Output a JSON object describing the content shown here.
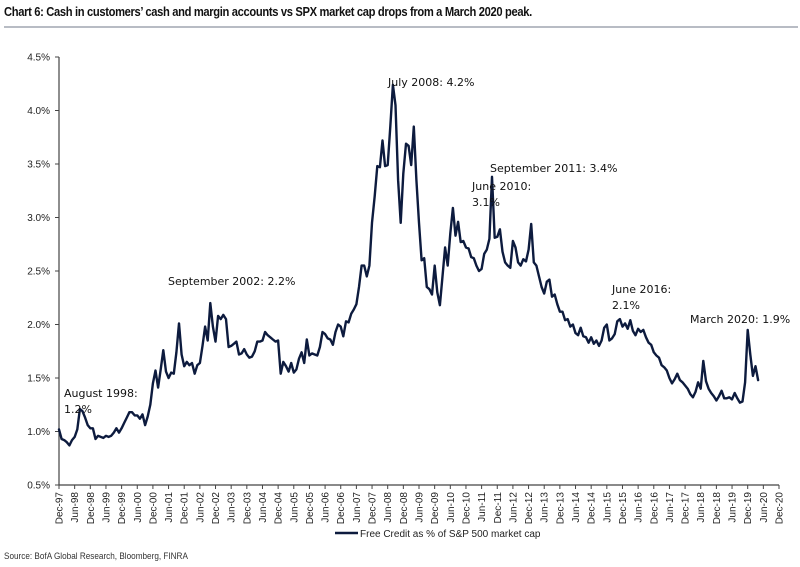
{
  "title": "Chart 6: Cash in customers’ cash and margin accounts vs SPX market cap drops from a March 2020 peak.",
  "source": "Source: BofA Global Research, Bloomberg, FINRA",
  "chart_data": {
    "type": "line",
    "title": "Chart 6: Cash in customers’ cash and margin accounts vs SPX market cap drops from a March 2020 peak.",
    "xlabel": "",
    "ylabel": "",
    "ylim": [
      0.5,
      4.5
    ],
    "yticks": [
      "0.5%",
      "1.0%",
      "1.5%",
      "2.0%",
      "2.5%",
      "3.0%",
      "3.5%",
      "4.0%",
      "4.5%"
    ],
    "ytick_values": [
      0.5,
      1.0,
      1.5,
      2.0,
      2.5,
      3.0,
      3.5,
      4.0,
      4.5
    ],
    "xticks": [
      "Dec-97",
      "Jun-98",
      "Dec-98",
      "Jun-99",
      "Dec-99",
      "Jun-00",
      "Dec-00",
      "Jun-01",
      "Dec-01",
      "Jun-02",
      "Dec-02",
      "Jun-03",
      "Dec-03",
      "Jun-04",
      "Dec-04",
      "Jun-05",
      "Dec-05",
      "Jun-06",
      "Dec-06",
      "Jun-07",
      "Dec-07",
      "Jun-08",
      "Dec-08",
      "Jun-09",
      "Dec-09",
      "Jun-10",
      "Dec-10",
      "Jun-11",
      "Dec-11",
      "Jun-12",
      "Dec-12",
      "Jun-13",
      "Dec-13",
      "Jun-14",
      "Dec-14",
      "Jun-15",
      "Dec-15",
      "Jun-16",
      "Dec-16",
      "Jun-17",
      "Dec-17",
      "Jun-18",
      "Dec-18",
      "Jun-19",
      "Dec-19",
      "Jun-20",
      "Dec-20"
    ],
    "x_unit": "months since Dec-97",
    "grid": false,
    "legend_position": "bottom-center",
    "series": [
      {
        "name": "Free Credit as % of S&P 500 market cap",
        "color": "#0d1b3e",
        "points": [
          [
            0,
            1.02
          ],
          [
            1,
            0.93
          ],
          [
            2,
            0.92
          ],
          [
            3,
            0.9
          ],
          [
            4,
            0.87
          ],
          [
            5,
            0.92
          ],
          [
            6,
            0.95
          ],
          [
            7,
            1.02
          ],
          [
            8,
            1.21
          ],
          [
            9,
            1.19
          ],
          [
            10,
            1.13
          ],
          [
            11,
            1.06
          ],
          [
            12,
            1.03
          ],
          [
            13,
            1.03
          ],
          [
            14,
            0.93
          ],
          [
            15,
            0.96
          ],
          [
            16,
            0.95
          ],
          [
            17,
            0.94
          ],
          [
            18,
            0.96
          ],
          [
            19,
            0.95
          ],
          [
            20,
            0.96
          ],
          [
            21,
            0.99
          ],
          [
            22,
            1.03
          ],
          [
            23,
            0.99
          ],
          [
            24,
            1.03
          ],
          [
            25,
            1.08
          ],
          [
            26,
            1.13
          ],
          [
            27,
            1.18
          ],
          [
            28,
            1.18
          ],
          [
            29,
            1.15
          ],
          [
            30,
            1.15
          ],
          [
            31,
            1.12
          ],
          [
            32,
            1.16
          ],
          [
            33,
            1.06
          ],
          [
            34,
            1.14
          ],
          [
            35,
            1.25
          ],
          [
            36,
            1.45
          ],
          [
            37,
            1.57
          ],
          [
            38,
            1.41
          ],
          [
            39,
            1.58
          ],
          [
            40,
            1.76
          ],
          [
            41,
            1.56
          ],
          [
            42,
            1.5
          ],
          [
            43,
            1.55
          ],
          [
            44,
            1.54
          ],
          [
            45,
            1.74
          ],
          [
            46,
            2.01
          ],
          [
            47,
            1.72
          ],
          [
            48,
            1.61
          ],
          [
            49,
            1.65
          ],
          [
            50,
            1.62
          ],
          [
            51,
            1.64
          ],
          [
            52,
            1.54
          ],
          [
            53,
            1.62
          ],
          [
            54,
            1.64
          ],
          [
            55,
            1.8
          ],
          [
            56,
            1.98
          ],
          [
            57,
            1.85
          ],
          [
            58,
            2.2
          ],
          [
            59,
            1.98
          ],
          [
            60,
            1.84
          ],
          [
            61,
            2.08
          ],
          [
            62,
            2.05
          ],
          [
            63,
            2.09
          ],
          [
            64,
            2.05
          ],
          [
            65,
            1.79
          ],
          [
            66,
            1.8
          ],
          [
            67,
            1.82
          ],
          [
            68,
            1.84
          ],
          [
            69,
            1.72
          ],
          [
            70,
            1.73
          ],
          [
            71,
            1.77
          ],
          [
            72,
            1.72
          ],
          [
            73,
            1.69
          ],
          [
            74,
            1.7
          ],
          [
            75,
            1.75
          ],
          [
            76,
            1.84
          ],
          [
            77,
            1.84
          ],
          [
            78,
            1.85
          ],
          [
            79,
            1.93
          ],
          [
            80,
            1.9
          ],
          [
            81,
            1.88
          ],
          [
            82,
            1.86
          ],
          [
            83,
            1.84
          ],
          [
            84,
            1.85
          ],
          [
            85,
            1.54
          ],
          [
            86,
            1.65
          ],
          [
            87,
            1.61
          ],
          [
            88,
            1.56
          ],
          [
            89,
            1.64
          ],
          [
            90,
            1.55
          ],
          [
            91,
            1.58
          ],
          [
            92,
            1.68
          ],
          [
            93,
            1.74
          ],
          [
            94,
            1.64
          ],
          [
            95,
            1.86
          ],
          [
            96,
            1.71
          ],
          [
            97,
            1.73
          ],
          [
            98,
            1.72
          ],
          [
            99,
            1.71
          ],
          [
            100,
            1.79
          ],
          [
            101,
            1.93
          ],
          [
            102,
            1.91
          ],
          [
            103,
            1.87
          ],
          [
            104,
            1.86
          ],
          [
            105,
            1.81
          ],
          [
            106,
            1.93
          ],
          [
            107,
            2.0
          ],
          [
            108,
            1.98
          ],
          [
            109,
            1.89
          ],
          [
            110,
            2.03
          ],
          [
            111,
            2.02
          ],
          [
            112,
            2.1
          ],
          [
            113,
            2.14
          ],
          [
            114,
            2.19
          ],
          [
            115,
            2.35
          ],
          [
            116,
            2.55
          ],
          [
            117,
            2.55
          ],
          [
            118,
            2.45
          ],
          [
            119,
            2.55
          ],
          [
            120,
            2.95
          ],
          [
            121,
            3.2
          ],
          [
            122,
            3.48
          ],
          [
            123,
            3.47
          ],
          [
            124,
            3.72
          ],
          [
            125,
            3.48
          ],
          [
            126,
            3.49
          ],
          [
            127,
            3.85
          ],
          [
            128,
            4.24
          ],
          [
            129,
            4.05
          ],
          [
            130,
            3.35
          ],
          [
            131,
            2.95
          ],
          [
            132,
            3.41
          ],
          [
            133,
            3.69
          ],
          [
            134,
            3.67
          ],
          [
            135,
            3.49
          ],
          [
            136,
            3.85
          ],
          [
            137,
            3.35
          ],
          [
            138,
            2.95
          ],
          [
            139,
            2.6
          ],
          [
            140,
            2.62
          ],
          [
            141,
            2.35
          ],
          [
            142,
            2.33
          ],
          [
            143,
            2.28
          ],
          [
            144,
            2.55
          ],
          [
            145,
            2.3
          ],
          [
            146,
            2.18
          ],
          [
            147,
            2.45
          ],
          [
            148,
            2.72
          ],
          [
            149,
            2.55
          ],
          [
            150,
            2.85
          ],
          [
            151,
            3.09
          ],
          [
            152,
            2.83
          ],
          [
            153,
            2.96
          ],
          [
            154,
            2.77
          ],
          [
            155,
            2.78
          ],
          [
            156,
            2.72
          ],
          [
            157,
            2.71
          ],
          [
            158,
            2.63
          ],
          [
            159,
            2.62
          ],
          [
            160,
            2.55
          ],
          [
            161,
            2.5
          ],
          [
            162,
            2.52
          ],
          [
            163,
            2.66
          ],
          [
            164,
            2.7
          ],
          [
            165,
            2.8
          ],
          [
            166,
            3.38
          ],
          [
            167,
            2.81
          ],
          [
            168,
            2.82
          ],
          [
            169,
            2.89
          ],
          [
            170,
            2.68
          ],
          [
            171,
            2.58
          ],
          [
            172,
            2.55
          ],
          [
            173,
            2.53
          ],
          [
            174,
            2.78
          ],
          [
            175,
            2.72
          ],
          [
            176,
            2.58
          ],
          [
            177,
            2.55
          ],
          [
            178,
            2.61
          ],
          [
            179,
            2.59
          ],
          [
            180,
            2.7
          ],
          [
            181,
            2.94
          ],
          [
            182,
            2.58
          ],
          [
            183,
            2.55
          ],
          [
            184,
            2.45
          ],
          [
            185,
            2.35
          ],
          [
            186,
            2.29
          ],
          [
            187,
            2.4
          ],
          [
            188,
            2.42
          ],
          [
            189,
            2.26
          ],
          [
            190,
            2.28
          ],
          [
            191,
            2.19
          ],
          [
            192,
            2.12
          ],
          [
            193,
            2.12
          ],
          [
            194,
            2.04
          ],
          [
            195,
            2.05
          ],
          [
            196,
            1.98
          ],
          [
            197,
            2.0
          ],
          [
            198,
            1.92
          ],
          [
            199,
            1.9
          ],
          [
            200,
            1.97
          ],
          [
            201,
            1.89
          ],
          [
            202,
            1.88
          ],
          [
            203,
            1.83
          ],
          [
            204,
            1.88
          ],
          [
            205,
            1.82
          ],
          [
            206,
            1.85
          ],
          [
            207,
            1.8
          ],
          [
            208,
            1.85
          ],
          [
            209,
            1.97
          ],
          [
            210,
            2.0
          ],
          [
            211,
            1.85
          ],
          [
            212,
            1.87
          ],
          [
            213,
            1.91
          ],
          [
            214,
            2.03
          ],
          [
            215,
            2.05
          ],
          [
            216,
            1.98
          ],
          [
            217,
            2.01
          ],
          [
            218,
            1.96
          ],
          [
            219,
            2.04
          ],
          [
            220,
            1.94
          ],
          [
            221,
            1.9
          ],
          [
            222,
            1.96
          ],
          [
            223,
            1.93
          ],
          [
            224,
            1.95
          ],
          [
            225,
            1.88
          ],
          [
            226,
            1.83
          ],
          [
            227,
            1.81
          ],
          [
            228,
            1.74
          ],
          [
            229,
            1.71
          ],
          [
            230,
            1.69
          ],
          [
            231,
            1.62
          ],
          [
            232,
            1.6
          ],
          [
            233,
            1.57
          ],
          [
            234,
            1.5
          ],
          [
            235,
            1.45
          ],
          [
            236,
            1.49
          ],
          [
            237,
            1.54
          ],
          [
            238,
            1.48
          ],
          [
            239,
            1.46
          ],
          [
            240,
            1.43
          ],
          [
            241,
            1.4
          ],
          [
            242,
            1.35
          ],
          [
            243,
            1.32
          ],
          [
            244,
            1.37
          ],
          [
            245,
            1.46
          ],
          [
            246,
            1.4
          ],
          [
            247,
            1.66
          ],
          [
            248,
            1.47
          ],
          [
            249,
            1.4
          ],
          [
            250,
            1.36
          ],
          [
            251,
            1.33
          ],
          [
            252,
            1.29
          ],
          [
            253,
            1.33
          ],
          [
            254,
            1.38
          ],
          [
            255,
            1.31
          ],
          [
            256,
            1.31
          ],
          [
            257,
            1.32
          ],
          [
            258,
            1.3
          ],
          [
            259,
            1.36
          ],
          [
            260,
            1.31
          ],
          [
            261,
            1.27
          ],
          [
            262,
            1.28
          ],
          [
            263,
            1.46
          ],
          [
            264,
            1.95
          ],
          [
            265,
            1.72
          ],
          [
            266,
            1.52
          ],
          [
            267,
            1.61
          ],
          [
            268,
            1.48
          ]
        ]
      }
    ],
    "annotations": [
      {
        "lines": [
          "August 1998:",
          "1.2%"
        ],
        "x": 8,
        "y": 1.2
      },
      {
        "lines": [
          "September 2002: 2.2%"
        ],
        "x": 57,
        "y": 2.2
      },
      {
        "lines": [
          "July 2008: 4.2%"
        ],
        "x": 127,
        "y": 4.2
      },
      {
        "lines": [
          "June 2010:",
          "3.1%"
        ],
        "x": 150,
        "y": 3.1
      },
      {
        "lines": [
          "September 2011: 3.4%"
        ],
        "x": 165,
        "y": 3.4
      },
      {
        "lines": [
          "June 2016:",
          "2.1%"
        ],
        "x": 222,
        "y": 2.1
      },
      {
        "lines": [
          "March 2020: 1.9%"
        ],
        "x": 267,
        "y": 1.9
      }
    ]
  }
}
